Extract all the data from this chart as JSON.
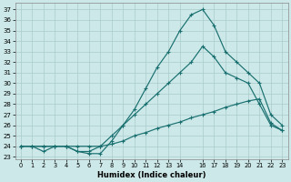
{
  "title": "",
  "xlabel": "Humidex (Indice chaleur)",
  "ylabel": "",
  "bg_color": "#cce8e8",
  "grid_color": "#b8d8d8",
  "line_color": "#1a7070",
  "xlim": [
    -0.5,
    23.5
  ],
  "ylim": [
    22.8,
    37.6
  ],
  "yticks": [
    23,
    24,
    25,
    26,
    27,
    28,
    29,
    30,
    31,
    32,
    33,
    34,
    35,
    36,
    37
  ],
  "xticks": [
    0,
    1,
    2,
    3,
    4,
    5,
    6,
    7,
    8,
    9,
    10,
    11,
    12,
    13,
    14,
    16,
    17,
    18,
    19,
    20,
    21,
    22,
    23
  ],
  "line1_x": [
    0,
    1,
    2,
    3,
    4,
    5,
    6,
    7,
    8,
    9,
    10,
    11,
    12,
    13,
    14,
    15,
    16,
    17,
    18,
    19,
    20,
    21,
    22,
    23
  ],
  "line1_y": [
    24,
    24,
    23.5,
    24,
    24,
    23.5,
    23.3,
    23.3,
    24.5,
    26,
    27.5,
    29.5,
    31.5,
    33,
    35,
    36.5,
    37,
    35.5,
    33,
    32,
    31,
    30,
    27,
    26
  ],
  "line2_x": [
    0,
    1,
    2,
    3,
    4,
    5,
    6,
    7,
    8,
    9,
    10,
    11,
    12,
    13,
    14,
    15,
    16,
    17,
    18,
    19,
    20,
    21,
    22,
    23
  ],
  "line2_y": [
    24,
    24,
    24,
    24,
    24,
    23.5,
    23.5,
    24,
    25,
    26,
    27,
    28,
    29,
    30,
    31,
    32,
    33.5,
    32.5,
    31,
    30.5,
    30,
    28,
    26,
    25.5
  ],
  "line3_x": [
    0,
    1,
    2,
    3,
    4,
    5,
    6,
    7,
    8,
    9,
    10,
    11,
    12,
    13,
    14,
    15,
    16,
    17,
    18,
    19,
    20,
    21,
    22,
    23
  ],
  "line3_y": [
    24,
    24,
    24,
    24,
    24,
    24,
    24,
    24,
    24.2,
    24.5,
    25,
    25.3,
    25.7,
    26,
    26.3,
    26.7,
    27,
    27.3,
    27.7,
    28,
    28.3,
    28.5,
    26.2,
    25.5
  ]
}
